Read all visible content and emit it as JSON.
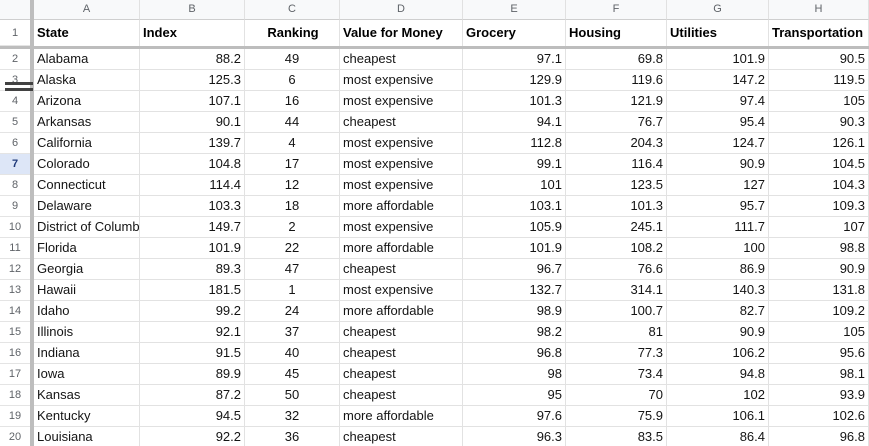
{
  "sheet": {
    "app": "spreadsheet-grid",
    "column_letters": [
      "A",
      "B",
      "C",
      "D",
      "E",
      "F",
      "G",
      "H"
    ],
    "active_row_number": 7,
    "frozen_rows": 1,
    "resize_handle_between_rows": "3-4"
  },
  "table": {
    "header_row_number": "1",
    "header": [
      "State",
      "Index",
      "Ranking",
      "Value for Money",
      "Grocery",
      "Housing",
      "Utilities",
      "Transportation"
    ],
    "column_alignments": [
      "left",
      "right",
      "center",
      "left",
      "right",
      "right",
      "right",
      "right"
    ],
    "rows": [
      {
        "n": "2",
        "cells": [
          "Alabama",
          "88.2",
          "49",
          "cheapest",
          "97.1",
          "69.8",
          "101.9",
          "90.5"
        ]
      },
      {
        "n": "3",
        "cells": [
          "Alaska",
          "125.3",
          "6",
          "most expensive",
          "129.9",
          "119.6",
          "147.2",
          "119.5"
        ]
      },
      {
        "n": "4",
        "cells": [
          "Arizona",
          "107.1",
          "16",
          "most expensive",
          "101.3",
          "121.9",
          "97.4",
          "105"
        ]
      },
      {
        "n": "5",
        "cells": [
          "Arkansas",
          "90.1",
          "44",
          "cheapest",
          "94.1",
          "76.7",
          "95.4",
          "90.3"
        ]
      },
      {
        "n": "6",
        "cells": [
          "California",
          "139.7",
          "4",
          "most expensive",
          "112.8",
          "204.3",
          "124.7",
          "126.1"
        ]
      },
      {
        "n": "7",
        "cells": [
          "Colorado",
          "104.8",
          "17",
          "most expensive",
          "99.1",
          "116.4",
          "90.9",
          "104.5"
        ]
      },
      {
        "n": "8",
        "cells": [
          "Connecticut",
          "114.4",
          "12",
          "most expensive",
          "101",
          "123.5",
          "127",
          "104.3"
        ]
      },
      {
        "n": "9",
        "cells": [
          "Delaware",
          "103.3",
          "18",
          "more affordable",
          "103.1",
          "101.3",
          "95.7",
          "109.3"
        ]
      },
      {
        "n": "10",
        "cells": [
          "District of Columbia",
          "149.7",
          "2",
          "most expensive",
          "105.9",
          "245.1",
          "111.7",
          "107"
        ]
      },
      {
        "n": "11",
        "cells": [
          "Florida",
          "101.9",
          "22",
          "more affordable",
          "101.9",
          "108.2",
          "100",
          "98.8"
        ]
      },
      {
        "n": "12",
        "cells": [
          "Georgia",
          "89.3",
          "47",
          "cheapest",
          "96.7",
          "76.6",
          "86.9",
          "90.9"
        ]
      },
      {
        "n": "13",
        "cells": [
          "Hawaii",
          "181.5",
          "1",
          "most expensive",
          "132.7",
          "314.1",
          "140.3",
          "131.8"
        ]
      },
      {
        "n": "14",
        "cells": [
          "Idaho",
          "99.2",
          "24",
          "more affordable",
          "98.9",
          "100.7",
          "82.7",
          "109.2"
        ]
      },
      {
        "n": "15",
        "cells": [
          "Illinois",
          "92.1",
          "37",
          "cheapest",
          "98.2",
          "81",
          "90.9",
          "105"
        ]
      },
      {
        "n": "16",
        "cells": [
          "Indiana",
          "91.5",
          "40",
          "cheapest",
          "96.8",
          "77.3",
          "106.2",
          "95.6"
        ]
      },
      {
        "n": "17",
        "cells": [
          "Iowa",
          "89.9",
          "45",
          "cheapest",
          "98",
          "73.4",
          "94.8",
          "98.1"
        ]
      },
      {
        "n": "18",
        "cells": [
          "Kansas",
          "87.2",
          "50",
          "cheapest",
          "95",
          "70",
          "102",
          "93.9"
        ]
      },
      {
        "n": "19",
        "cells": [
          "Kentucky",
          "94.5",
          "32",
          "more affordable",
          "97.6",
          "75.9",
          "106.1",
          "102.6"
        ]
      },
      {
        "n": "20",
        "cells": [
          "Louisiana",
          "92.2",
          "36",
          "cheapest",
          "96.3",
          "83.5",
          "86.4",
          "96.8"
        ]
      }
    ]
  },
  "colors": {
    "header_bg": "#f8f9fa",
    "gridline": "#e2e2e2",
    "frozen_divider": "#bdbdbd",
    "active_row_bg": "#dde6f7",
    "active_row_text": "#1f3a7a",
    "resize_handle": "#424242"
  }
}
